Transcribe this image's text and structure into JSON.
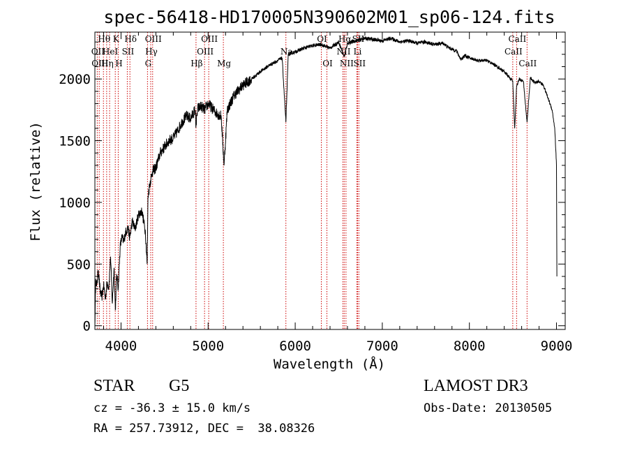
{
  "chart_data": {
    "type": "line",
    "title": "spec-56418-HD170005N390602M01_sp06-124.fits",
    "xlabel": "Wavelength (Å)",
    "ylabel": "Flux (relative)",
    "xlim": [
      3700,
      9100
    ],
    "ylim": [
      -30,
      2380
    ],
    "xticks": [
      4000,
      5000,
      6000,
      7000,
      8000,
      9000
    ],
    "yticks": [
      0,
      500,
      1000,
      1500,
      2000
    ],
    "spectrum": {
      "name": "flux",
      "x": [
        3700,
        3710,
        3720,
        3740,
        3760,
        3780,
        3800,
        3820,
        3840,
        3860,
        3880,
        3900,
        3920,
        3935,
        3950,
        3968,
        3990,
        4010,
        4030,
        4050,
        4080,
        4100,
        4130,
        4160,
        4200,
        4240,
        4280,
        4300,
        4310,
        4330,
        4360,
        4400,
        4450,
        4500,
        4550,
        4600,
        4650,
        4700,
        4750,
        4800,
        4850,
        4861,
        4880,
        4920,
        4960,
        5000,
        5050,
        5100,
        5150,
        5183,
        5220,
        5300,
        5400,
        5500,
        5600,
        5700,
        5800,
        5850,
        5893,
        5920,
        6000,
        6100,
        6200,
        6300,
        6400,
        6500,
        6563,
        6600,
        6700,
        6800,
        6900,
        7000,
        7100,
        7200,
        7300,
        7400,
        7500,
        7600,
        7700,
        7750,
        7800,
        7850,
        7900,
        7950,
        8000,
        8100,
        8200,
        8300,
        8400,
        8498,
        8520,
        8542,
        8570,
        8620,
        8662,
        8700,
        8750,
        8800,
        8850,
        8900,
        8950,
        8980,
        9000,
        9005
      ],
      "y": [
        0,
        380,
        320,
        450,
        280,
        230,
        330,
        220,
        350,
        310,
        560,
        180,
        470,
        130,
        420,
        300,
        640,
        720,
        680,
        750,
        800,
        710,
        850,
        780,
        900,
        930,
        760,
        500,
        1050,
        1150,
        1250,
        1280,
        1400,
        1450,
        1500,
        1520,
        1580,
        1650,
        1700,
        1680,
        1750,
        1620,
        1760,
        1780,
        1750,
        1800,
        1760,
        1720,
        1700,
        1300,
        1750,
        1870,
        1950,
        2000,
        2060,
        2110,
        2150,
        2170,
        1650,
        2200,
        2220,
        2250,
        2270,
        2280,
        2250,
        2300,
        2180,
        2290,
        2310,
        2330,
        2320,
        2310,
        2330,
        2300,
        2310,
        2290,
        2300,
        2280,
        2290,
        2260,
        2240,
        2230,
        2160,
        2190,
        2170,
        2150,
        2150,
        2110,
        2060,
        1980,
        1600,
        1940,
        2000,
        1980,
        1650,
        2010,
        1970,
        1980,
        1950,
        1850,
        1750,
        1600,
        1300,
        400
      ]
    },
    "reference_lines": [
      {
        "wavelength": 3727,
        "label": "OII",
        "row": 1
      },
      {
        "wavelength": 3750,
        "label": "OIII",
        "row": 2
      },
      {
        "wavelength": 3798,
        "label": "Hθ",
        "row": 0
      },
      {
        "wavelength": 3835,
        "label": "Hη",
        "row": 2
      },
      {
        "wavelength": 3869,
        "label": "HeI",
        "row": 1
      },
      {
        "wavelength": 3934,
        "label": "K",
        "row": 0
      },
      {
        "wavelength": 3968,
        "label": "H",
        "row": 2
      },
      {
        "wavelength": 4072,
        "label": "SII",
        "row": 1
      },
      {
        "wavelength": 4102,
        "label": "Hδ",
        "row": 0
      },
      {
        "wavelength": 4304,
        "label": "G",
        "row": 2
      },
      {
        "wavelength": 4341,
        "label": "Hγ",
        "row": 1
      },
      {
        "wavelength": 4363,
        "label": "OIII",
        "row": 0
      },
      {
        "wavelength": 4861,
        "label": "Hβ",
        "row": 2
      },
      {
        "wavelength": 4959,
        "label": "OIII",
        "row": 1
      },
      {
        "wavelength": 5007,
        "label": "OIII",
        "row": 0
      },
      {
        "wavelength": 5175,
        "label": "Mg",
        "row": 2
      },
      {
        "wavelength": 5893,
        "label": "Na",
        "row": 1
      },
      {
        "wavelength": 6300,
        "label": "OI",
        "row": 0
      },
      {
        "wavelength": 6364,
        "label": "OI",
        "row": 2
      },
      {
        "wavelength": 6548,
        "label": "NII",
        "row": 1
      },
      {
        "wavelength": 6563,
        "label": "Hα",
        "row": 0
      },
      {
        "wavelength": 6583,
        "label": "NII",
        "row": 2
      },
      {
        "wavelength": 6708,
        "label": "Li",
        "row": 1
      },
      {
        "wavelength": 6716,
        "label": "SII",
        "row": 0
      },
      {
        "wavelength": 6731,
        "label": "SII",
        "row": 2
      },
      {
        "wavelength": 8498,
        "label": "CaII",
        "row": 1
      },
      {
        "wavelength": 8542,
        "label": "CaII",
        "row": 0
      },
      {
        "wavelength": 8662,
        "label": "CaII",
        "row": 2
      }
    ]
  },
  "info": {
    "class": "STAR",
    "subclass": "G5",
    "survey": "LAMOST DR3",
    "cz": "cz = -36.3 ± 15.0 km/s",
    "obs_date": "Obs-Date: 20130505",
    "coords": "RA = 257.73912, DEC =  38.08326"
  }
}
